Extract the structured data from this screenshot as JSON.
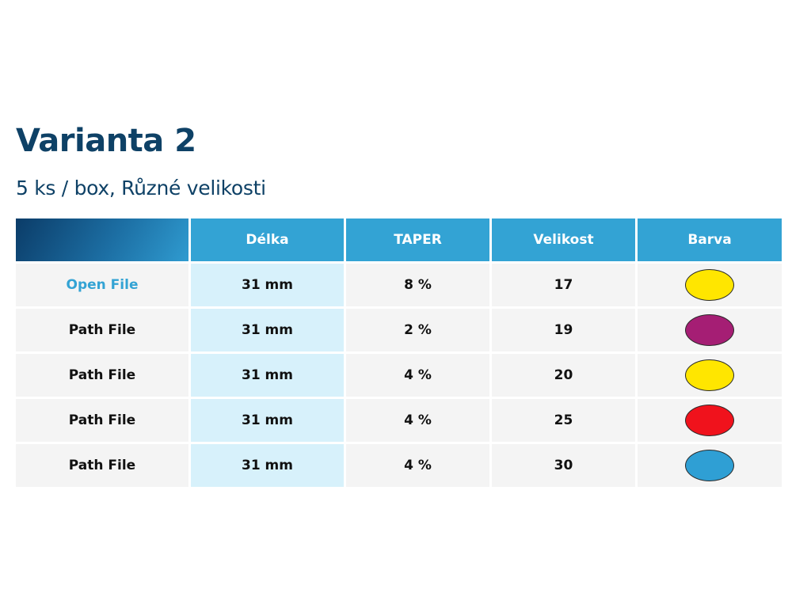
{
  "title": "Varianta 2",
  "subtitle": "5 ks / box, Různé velikosti",
  "table": {
    "headers": [
      "",
      "Délka",
      "TAPER",
      "Velikost",
      "Barva"
    ],
    "rows": [
      {
        "name": "Open File",
        "length": "31 mm",
        "taper": "8 %",
        "size": "17",
        "color": "#ffe600",
        "color_name": "yellow"
      },
      {
        "name": "Path File",
        "length": "31 mm",
        "taper": "2 %",
        "size": "19",
        "color": "#a51e74",
        "color_name": "purple"
      },
      {
        "name": "Path File",
        "length": "31 mm",
        "taper": "4 %",
        "size": "20",
        "color": "#ffe600",
        "color_name": "yellow"
      },
      {
        "name": "Path File",
        "length": "31 mm",
        "taper": "4 %",
        "size": "25",
        "color": "#f0121c",
        "color_name": "red"
      },
      {
        "name": "Path File",
        "length": "31 mm",
        "taper": "4 %",
        "size": "30",
        "color": "#2f9fd4",
        "color_name": "blue"
      }
    ]
  }
}
